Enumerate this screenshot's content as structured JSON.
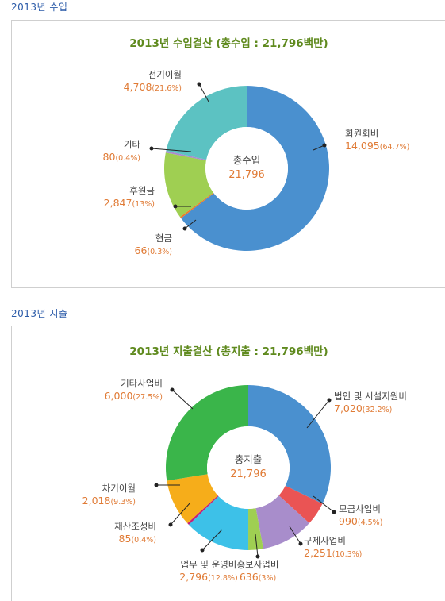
{
  "sections": [
    {
      "heading": "2013년 수입",
      "title": "2013년 수입결산 (총수입 : 21,796백만)"
    },
    {
      "heading": "2013년 지출",
      "title": "2013년 지출결산 (총지출 : 21,796백만)"
    }
  ],
  "chart_data": [
    {
      "type": "pie",
      "title": "2013년 수입결산 (총수입 : 21,796백만)",
      "center_label": "총수입",
      "center_value": "21,796",
      "slices": [
        {
          "name": "회원회비",
          "value": 14095,
          "value_text": "14,095",
          "pct_text": "(64.7%)",
          "color": "#4a90cf"
        },
        {
          "name": "현금",
          "value": 66,
          "value_text": "66",
          "pct_text": "(0.3%)",
          "color": "#ee7a2a"
        },
        {
          "name": "후원금",
          "value": 2847,
          "value_text": "2,847",
          "pct_text": "(13%)",
          "color": "#9fcf52"
        },
        {
          "name": "기타",
          "value": 80,
          "value_text": "80",
          "pct_text": "(0.4%)",
          "color": "#a98ccc"
        },
        {
          "name": "전기이월",
          "value": 4708,
          "value_text": "4,708",
          "pct_text": "(21.6%)",
          "color": "#5cc2c2"
        }
      ]
    },
    {
      "type": "pie",
      "title": "2013년 지출결산 (총지출 : 21,796백만)",
      "center_label": "총지출",
      "center_value": "21,796",
      "slices": [
        {
          "name": "법인 및 시설지원비",
          "value": 7020,
          "value_text": "7,020",
          "pct_text": "(32.2%)",
          "color": "#4a90cf"
        },
        {
          "name": "모금사업비",
          "value": 990,
          "value_text": "990",
          "pct_text": "(4.5%)",
          "color": "#ea5454"
        },
        {
          "name": "구제사업비",
          "value": 2251,
          "value_text": "2,251",
          "pct_text": "(10.3%)",
          "color": "#a88dcb"
        },
        {
          "name": "홍보사업비",
          "value": 636,
          "value_text": "636",
          "pct_text": "(3%)",
          "color": "#9fcf52"
        },
        {
          "name": "업무 및 운영비",
          "value": 2796,
          "value_text": "2,796",
          "pct_text": "(12.8%)",
          "color": "#3dc1e8"
        },
        {
          "name": "재산조성비",
          "value": 85,
          "value_text": "85",
          "pct_text": "(0.4%)",
          "color": "#c2217a"
        },
        {
          "name": "차기이월",
          "value": 2018,
          "value_text": "2,018",
          "pct_text": "(9.3%)",
          "color": "#f6ad1a"
        },
        {
          "name": "기타사업비",
          "value": 6000,
          "value_text": "6,000",
          "pct_text": "(27.5%)",
          "color": "#3ab54a"
        }
      ]
    }
  ]
}
